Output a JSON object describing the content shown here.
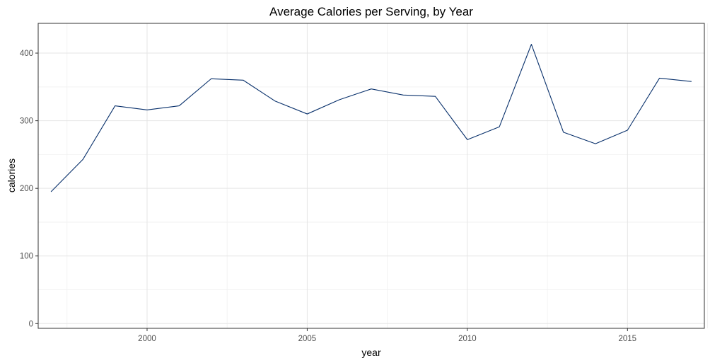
{
  "chart_data": {
    "type": "line",
    "title": "Average Calories per Serving, by Year",
    "xlabel": "year",
    "ylabel": "calories",
    "xlim": [
      1996.6,
      2017.4
    ],
    "ylim": [
      -7,
      444
    ],
    "x_ticks": [
      2000,
      2005,
      2010,
      2015
    ],
    "y_ticks": [
      0,
      100,
      200,
      300,
      400
    ],
    "x_minor_ticks": [
      1997.5,
      2002.5,
      2007.5,
      2012.5,
      2017.5
    ],
    "y_minor_ticks": [
      50,
      150,
      250,
      350
    ],
    "grid": true,
    "line_color": "#08306b",
    "series": [
      {
        "x": [
          1997,
          1998,
          1999,
          2000,
          2001,
          2002,
          2003,
          2004,
          2005,
          2006,
          2007,
          2008,
          2009,
          2010,
          2011,
          2012,
          2013,
          2014,
          2015,
          2016,
          2017
        ],
        "values": [
          195,
          243,
          322,
          316,
          322,
          362,
          360,
          329,
          310,
          331,
          347,
          338,
          336,
          272,
          291,
          413,
          283,
          266,
          286,
          363,
          358
        ]
      }
    ]
  }
}
